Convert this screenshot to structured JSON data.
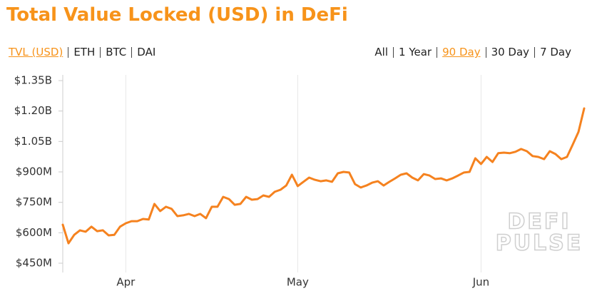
{
  "title": "Total Value Locked (USD) in DeFi",
  "metric_tabs": {
    "items": [
      "TVL (USD)",
      "ETH",
      "BTC",
      "DAI"
    ],
    "active": 0
  },
  "range_tabs": {
    "items": [
      "All",
      "1 Year",
      "90 Day",
      "30 Day",
      "7 Day"
    ],
    "active": 2
  },
  "watermark": [
    "DEFI",
    "PULSE"
  ],
  "chart_data": {
    "type": "line",
    "color": "#f5821f",
    "grid": "x",
    "categories": [
      null,
      null,
      null,
      null,
      null,
      null,
      null,
      null,
      null,
      null,
      null,
      "Apr",
      null,
      null,
      null,
      null,
      null,
      null,
      null,
      null,
      null,
      null,
      null,
      null,
      null,
      null,
      null,
      null,
      null,
      null,
      null,
      null,
      null,
      null,
      null,
      null,
      null,
      null,
      null,
      null,
      null,
      "May",
      null,
      null,
      null,
      null,
      null,
      null,
      null,
      null,
      null,
      null,
      null,
      null,
      null,
      null,
      null,
      null,
      null,
      null,
      null,
      null,
      null,
      null,
      null,
      null,
      null,
      null,
      null,
      null,
      null,
      null,
      null,
      "Jun",
      null,
      null,
      null,
      null,
      null,
      null,
      null,
      null,
      null,
      null,
      null,
      null,
      null,
      null,
      null,
      null,
      null,
      null
    ],
    "values": [
      640000000,
      548000000,
      590000000,
      612000000,
      605000000,
      630000000,
      608000000,
      612000000,
      587000000,
      590000000,
      630000000,
      647000000,
      657000000,
      657000000,
      668000000,
      665000000,
      742000000,
      707000000,
      728000000,
      718000000,
      682000000,
      686000000,
      693000000,
      682000000,
      693000000,
      672000000,
      728000000,
      728000000,
      777000000,
      766000000,
      738000000,
      742000000,
      777000000,
      763000000,
      766000000,
      784000000,
      777000000,
      802000000,
      812000000,
      833000000,
      886000000,
      830000000,
      851000000,
      872000000,
      861000000,
      854000000,
      858000000,
      851000000,
      893000000,
      900000000,
      897000000,
      840000000,
      823000000,
      833000000,
      847000000,
      854000000,
      833000000,
      851000000,
      868000000,
      886000000,
      893000000,
      872000000,
      858000000,
      889000000,
      882000000,
      865000000,
      868000000,
      858000000,
      868000000,
      882000000,
      897000000,
      900000000,
      967000000,
      939000000,
      974000000,
      949000000,
      992000000,
      995000000,
      992000000,
      999000000,
      1013000000,
      1002000000,
      978000000,
      974000000,
      963000000,
      1002000000,
      988000000,
      963000000,
      974000000,
      1034000000,
      1097000000,
      1213000000
    ],
    "ylim": [
      450000000,
      1350000000
    ],
    "yticks": [
      {
        "value": 450000000,
        "label": "$450M"
      },
      {
        "value": 600000000,
        "label": "$600M"
      },
      {
        "value": 750000000,
        "label": "$750M"
      },
      {
        "value": 900000000,
        "label": "$900M"
      },
      {
        "value": 1050000000,
        "label": "$1.05B"
      },
      {
        "value": 1200000000,
        "label": "$1.20B"
      },
      {
        "value": 1350000000,
        "label": "$1.35B"
      }
    ]
  }
}
